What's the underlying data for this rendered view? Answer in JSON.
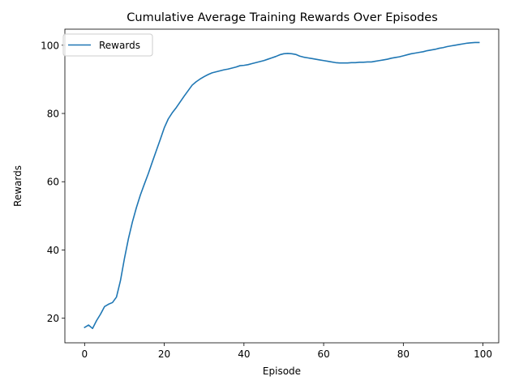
{
  "chart_data": {
    "type": "line",
    "title": "Cumulative Average Training Rewards Over Episodes",
    "xlabel": "Episode",
    "ylabel": "Rewards",
    "xlim": [
      -4.95,
      103.95
    ],
    "ylim": [
      12.8,
      104.7
    ],
    "xticks": [
      0,
      20,
      40,
      60,
      80,
      100
    ],
    "yticks": [
      20,
      40,
      60,
      80,
      100
    ],
    "grid": false,
    "legend": {
      "position": "top-left"
    },
    "series": [
      {
        "name": "Rewards",
        "color": "#1f77b4",
        "x": [
          0,
          1,
          2,
          3,
          4,
          5,
          6,
          7,
          8,
          9,
          10,
          11,
          12,
          13,
          14,
          15,
          16,
          17,
          18,
          19,
          20,
          21,
          22,
          23,
          24,
          25,
          26,
          27,
          28,
          29,
          30,
          31,
          32,
          33,
          34,
          35,
          36,
          37,
          38,
          39,
          40,
          41,
          42,
          43,
          44,
          45,
          46,
          47,
          48,
          49,
          50,
          51,
          52,
          53,
          54,
          55,
          56,
          57,
          58,
          59,
          60,
          61,
          62,
          63,
          64,
          65,
          66,
          67,
          68,
          69,
          70,
          71,
          72,
          73,
          74,
          75,
          76,
          77,
          78,
          79,
          80,
          81,
          82,
          83,
          84,
          85,
          86,
          87,
          88,
          89,
          90,
          91,
          92,
          93,
          94,
          95,
          96,
          97,
          98,
          99
        ],
        "values": [
          17.3,
          18.0,
          17.0,
          19.3,
          21.2,
          23.4,
          24.1,
          24.6,
          26.2,
          31.0,
          37.5,
          43.3,
          48.2,
          52.4,
          56.1,
          59.3,
          62.4,
          65.8,
          69.1,
          72.4,
          75.8,
          78.4,
          80.2,
          81.7,
          83.4,
          85.1,
          86.7,
          88.3,
          89.3,
          90.1,
          90.8,
          91.4,
          91.9,
          92.2,
          92.5,
          92.8,
          93.0,
          93.3,
          93.6,
          94.0,
          94.1,
          94.3,
          94.6,
          94.9,
          95.2,
          95.5,
          95.9,
          96.3,
          96.7,
          97.2,
          97.5,
          97.6,
          97.5,
          97.3,
          96.8,
          96.5,
          96.3,
          96.1,
          95.9,
          95.7,
          95.5,
          95.3,
          95.1,
          94.9,
          94.8,
          94.8,
          94.8,
          94.9,
          94.9,
          95.0,
          95.0,
          95.1,
          95.1,
          95.3,
          95.5,
          95.7,
          95.9,
          96.2,
          96.4,
          96.6,
          96.9,
          97.2,
          97.5,
          97.7,
          97.9,
          98.1,
          98.4,
          98.6,
          98.8,
          99.1,
          99.3,
          99.6,
          99.8,
          100.0,
          100.2,
          100.4,
          100.6,
          100.7,
          100.8,
          100.8
        ]
      }
    ]
  }
}
